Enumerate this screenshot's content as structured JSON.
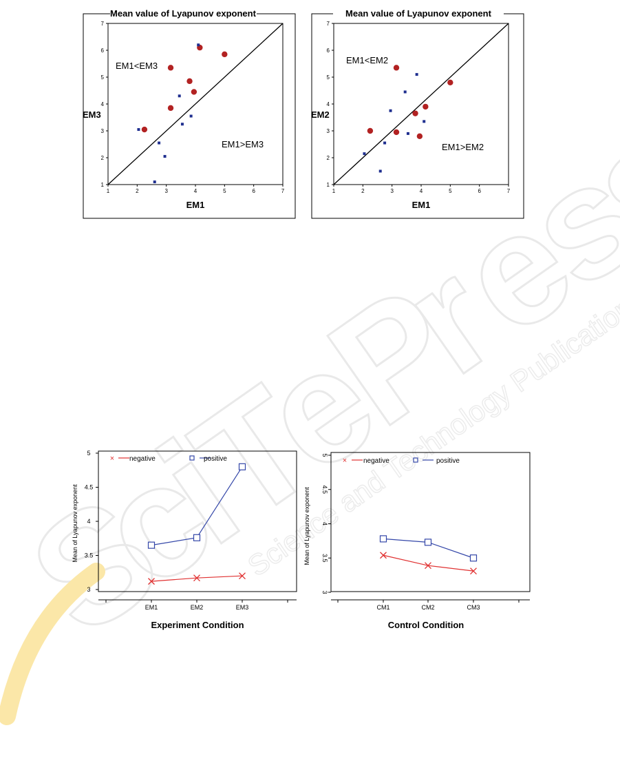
{
  "watermark": {
    "letters": [
      "S",
      "c",
      "i",
      "T",
      "e",
      "P",
      "r",
      "e",
      "s",
      "s"
    ],
    "subtitle": "Science and Technology Publications"
  },
  "chart_data": [
    {
      "type": "scatter",
      "title": "Mean value of Lyapunov exponent",
      "xlabel": "EM1",
      "ylabel": "EM3",
      "xlim": [
        1,
        7
      ],
      "ylim": [
        1,
        7
      ],
      "xticks": [
        "1",
        "2",
        "3",
        "4",
        "5",
        "6",
        "7"
      ],
      "yticks": [
        "1",
        "2",
        "3",
        "4",
        "5",
        "6",
        "7"
      ],
      "diagonal": true,
      "region_labels": [
        "EM1<EM3",
        "EM1>EM3"
      ],
      "series": [
        {
          "color": "#b22222",
          "marker": "circle",
          "points": [
            [
              2.25,
              3.05
            ],
            [
              3.15,
              5.35
            ],
            [
              3.15,
              3.85
            ],
            [
              3.8,
              4.85
            ],
            [
              3.95,
              4.45
            ],
            [
              4.15,
              6.1
            ],
            [
              5.0,
              5.85
            ]
          ]
        },
        {
          "color": "#1f2f8f",
          "marker": "square",
          "points": [
            [
              2.05,
              3.05
            ],
            [
              2.6,
              1.1
            ],
            [
              2.75,
              2.55
            ],
            [
              2.95,
              2.05
            ],
            [
              3.45,
              4.3
            ],
            [
              3.55,
              3.25
            ],
            [
              3.85,
              3.55
            ],
            [
              4.1,
              6.2
            ]
          ]
        }
      ]
    },
    {
      "type": "scatter",
      "title": "Mean value of Lyapunov exponent",
      "xlabel": "EM1",
      "ylabel": "EM2",
      "xlim": [
        1,
        7
      ],
      "ylim": [
        1,
        7
      ],
      "xticks": [
        "1",
        "2",
        "3",
        "4",
        "5",
        "6",
        "7"
      ],
      "yticks": [
        "1",
        "2",
        "3",
        "4",
        "5",
        "6",
        "7"
      ],
      "diagonal": true,
      "region_labels": [
        "EM1<EM2",
        "EM1>EM2"
      ],
      "series": [
        {
          "color": "#b22222",
          "marker": "circle",
          "points": [
            [
              2.25,
              3.0
            ],
            [
              3.15,
              5.35
            ],
            [
              3.15,
              2.95
            ],
            [
              3.8,
              3.65
            ],
            [
              3.95,
              2.8
            ],
            [
              4.15,
              3.9
            ],
            [
              5.0,
              4.8
            ]
          ]
        },
        {
          "color": "#1f2f8f",
          "marker": "square",
          "points": [
            [
              2.05,
              2.15
            ],
            [
              2.6,
              1.5
            ],
            [
              2.75,
              2.55
            ],
            [
              2.95,
              3.75
            ],
            [
              3.45,
              4.45
            ],
            [
              3.55,
              2.9
            ],
            [
              3.85,
              5.1
            ],
            [
              4.1,
              3.35
            ]
          ]
        }
      ]
    },
    {
      "type": "line",
      "xlabel": "Experiment Condition",
      "ylabel": "Mean of Lyapunov exponent",
      "categories": [
        "EM1",
        "EM2",
        "EM3"
      ],
      "ylim": [
        3,
        5
      ],
      "yticks": [
        "3",
        "3.5",
        "4",
        "4.5",
        "5"
      ],
      "series": [
        {
          "name": "negative",
          "color": "#e03030",
          "marker": "x",
          "values": [
            3.12,
            3.17,
            3.2
          ]
        },
        {
          "name": "positive",
          "color": "#3346a8",
          "marker": "square",
          "values": [
            3.65,
            3.76,
            4.8
          ]
        }
      ]
    },
    {
      "type": "line",
      "xlabel": "Control Condition",
      "ylabel": "Mean of Lyapunov exponent",
      "categories": [
        "CM1",
        "CM2",
        "CM3"
      ],
      "ylim": [
        3,
        5
      ],
      "yticks": [
        "3",
        "3.5",
        "4",
        "4.5",
        "5"
      ],
      "series": [
        {
          "name": "negative",
          "color": "#e03030",
          "marker": "x",
          "values": [
            3.54,
            3.39,
            3.31
          ]
        },
        {
          "name": "positive",
          "color": "#3346a8",
          "marker": "square",
          "values": [
            3.78,
            3.73,
            3.5
          ]
        }
      ]
    }
  ]
}
